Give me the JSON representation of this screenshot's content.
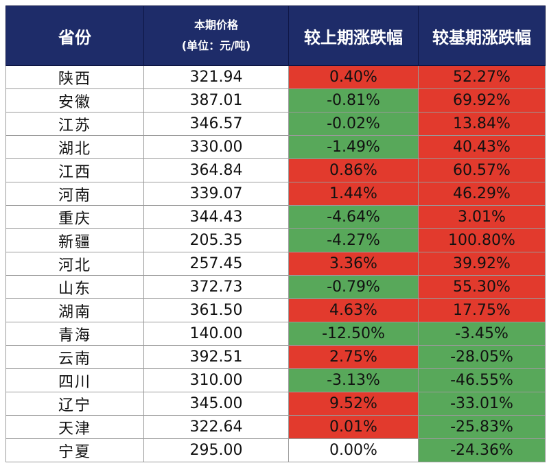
{
  "header": {
    "province": "省份",
    "price_line1": "本期价格",
    "price_line2": "(单位：元/吨)",
    "vs_previous": "较上期涨跌幅",
    "vs_base": "较基期涨跌幅"
  },
  "colors": {
    "header_bg": "#1e2c69",
    "increase": "#e23a2d",
    "decrease": "#58a85a",
    "unchanged": "#ffffff"
  },
  "rows": [
    {
      "province": "陕西",
      "price": "321.94",
      "vs_previous": "0.40%",
      "vs_base": "52.27%"
    },
    {
      "province": "安徽",
      "price": "387.01",
      "vs_previous": "-0.81%",
      "vs_base": "69.92%"
    },
    {
      "province": "江苏",
      "price": "346.57",
      "vs_previous": "-0.02%",
      "vs_base": "13.84%"
    },
    {
      "province": "湖北",
      "price": "330.00",
      "vs_previous": "-1.49%",
      "vs_base": "40.43%"
    },
    {
      "province": "江西",
      "price": "364.84",
      "vs_previous": "0.86%",
      "vs_base": "60.57%"
    },
    {
      "province": "河南",
      "price": "339.07",
      "vs_previous": "1.44%",
      "vs_base": "46.29%"
    },
    {
      "province": "重庆",
      "price": "344.43",
      "vs_previous": "-4.64%",
      "vs_base": "3.01%"
    },
    {
      "province": "新疆",
      "price": "205.35",
      "vs_previous": "-4.27%",
      "vs_base": "100.80%"
    },
    {
      "province": "河北",
      "price": "257.45",
      "vs_previous": "3.36%",
      "vs_base": "39.92%"
    },
    {
      "province": "山东",
      "price": "372.73",
      "vs_previous": "-0.79%",
      "vs_base": "55.30%"
    },
    {
      "province": "湖南",
      "price": "361.50",
      "vs_previous": "4.63%",
      "vs_base": "17.75%"
    },
    {
      "province": "青海",
      "price": "140.00",
      "vs_previous": "-12.50%",
      "vs_base": "-3.45%"
    },
    {
      "province": "云南",
      "price": "392.51",
      "vs_previous": "2.75%",
      "vs_base": "-28.05%"
    },
    {
      "province": "四川",
      "price": "310.00",
      "vs_previous": "-3.13%",
      "vs_base": "-46.55%"
    },
    {
      "province": "辽宁",
      "price": "345.00",
      "vs_previous": "9.52%",
      "vs_base": "-33.01%"
    },
    {
      "province": "天津",
      "price": "322.64",
      "vs_previous": "0.01%",
      "vs_base": "-25.83%"
    },
    {
      "province": "宁夏",
      "price": "295.00",
      "vs_previous": "0.00%",
      "vs_base": "-24.36%"
    }
  ]
}
